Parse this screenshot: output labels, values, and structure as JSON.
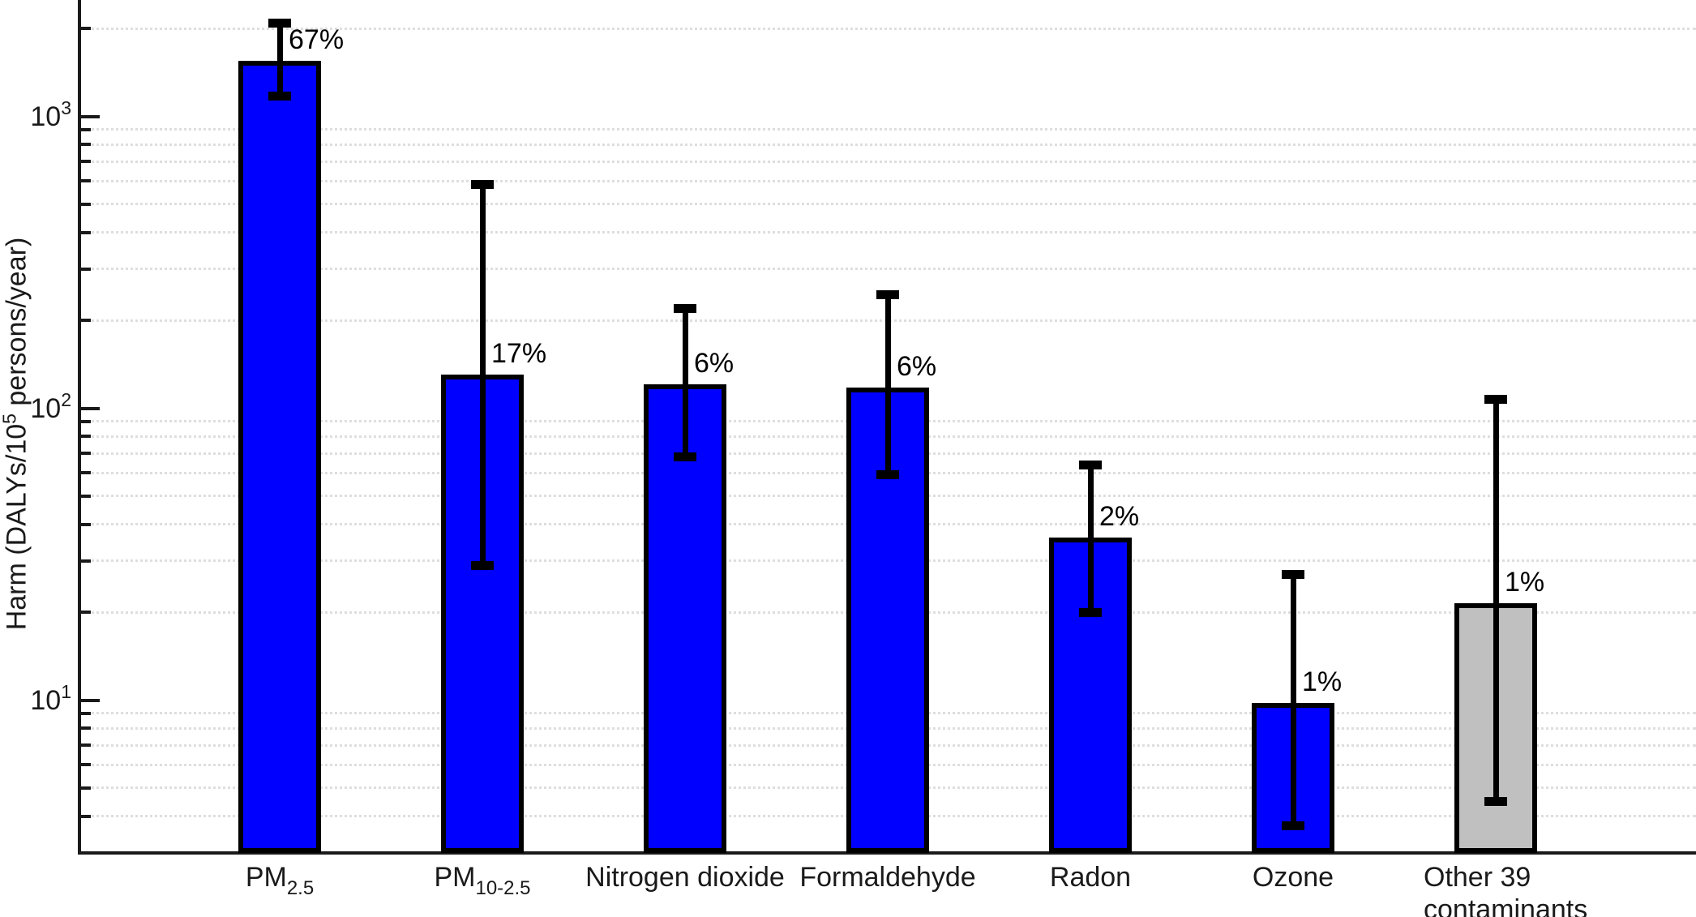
{
  "chart_data": {
    "type": "bar",
    "title": "",
    "xlabel": "",
    "ylabel": {
      "prefix": "Harm (DALYs/10",
      "superscript": "5",
      "suffix": " persons/year)"
    },
    "yscale": "log",
    "ylim": [
      3,
      2500
    ],
    "grid": "horizontal minor gridlines, dotted, light gray",
    "legend": "none",
    "categories": [
      {
        "text": "PM",
        "subscript": "2.5"
      },
      {
        "text": "PM",
        "subscript": "10-2.5"
      },
      {
        "text": "Nitrogen dioxide"
      },
      {
        "text": "Formaldehyde"
      },
      {
        "text": "Radon"
      },
      {
        "text": "Ozone"
      },
      {
        "text": "Other 39 contaminants",
        "lines": [
          "Other 39",
          "contaminants"
        ]
      }
    ],
    "series": [
      {
        "name": "Harm (DALYs/100,000 persons/year)",
        "values": [
          1550,
          130,
          121,
          118,
          36,
          9.8,
          21.5
        ],
        "ci_low": [
          1170,
          29,
          68,
          59,
          20,
          3.7,
          4.5
        ],
        "ci_high": [
          2080,
          585,
          220,
          245,
          64,
          27,
          107
        ],
        "percent_labels": [
          "67%",
          "17%",
          "6%",
          "6%",
          "2%",
          "1%",
          "1%"
        ],
        "bar_colors": [
          "#0000FF",
          "#0000FF",
          "#0000FF",
          "#0000FF",
          "#0000FF",
          "#0000FF",
          "#C0C0C0"
        ]
      }
    ],
    "y_ticks": [
      {
        "base": "10",
        "exponent": "1",
        "value": 10
      },
      {
        "base": "10",
        "exponent": "2",
        "value": 100
      },
      {
        "base": "10",
        "exponent": "3",
        "value": 1000
      }
    ],
    "y_minor_gridline_values": [
      4,
      5,
      6,
      7,
      8,
      9,
      20,
      30,
      40,
      50,
      60,
      70,
      80,
      90,
      200,
      300,
      400,
      500,
      600,
      700,
      800,
      900,
      2000
    ],
    "colors": {
      "bar_blue": "#0000FF",
      "bar_gray": "#C0C0C0",
      "bar_border": "#000000",
      "error_bar": "#000000",
      "gridline": "#DEDEDE",
      "axis": "#1A1A1A",
      "text": "#1A1A1A",
      "background": "#FFFFFF"
    }
  }
}
